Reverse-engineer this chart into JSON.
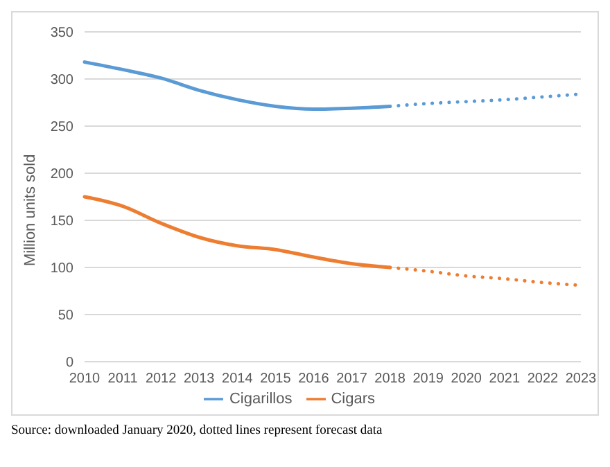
{
  "chart_data": {
    "type": "line",
    "ylabel": "Million units sold",
    "categories": [
      "2010",
      "2011",
      "2012",
      "2013",
      "2014",
      "2015",
      "2016",
      "2017",
      "2018",
      "2019",
      "2020",
      "2021",
      "2022",
      "2023"
    ],
    "series": [
      {
        "name": "Cigarillos",
        "color": "#5b9bd5",
        "line_style": "solid",
        "values": [
          318,
          310,
          301,
          288,
          278,
          271,
          268,
          269,
          271,
          null,
          null,
          null,
          null,
          null
        ]
      },
      {
        "color": "#5b9bd5",
        "line_style": "dotted",
        "values": [
          null,
          null,
          null,
          null,
          null,
          null,
          null,
          null,
          271,
          274,
          276,
          278,
          281,
          284
        ]
      },
      {
        "name": "Cigars",
        "color": "#ed7d31",
        "line_style": "solid",
        "values": [
          175,
          165,
          147,
          132,
          123,
          119,
          111,
          104,
          100,
          null,
          null,
          null,
          null,
          null
        ]
      },
      {
        "color": "#ed7d31",
        "line_style": "dotted",
        "values": [
          null,
          null,
          null,
          null,
          null,
          null,
          null,
          null,
          100,
          96,
          91,
          88,
          84,
          81
        ]
      }
    ],
    "ylim": [
      0,
      350
    ],
    "yticks": [
      0,
      50,
      100,
      150,
      200,
      250,
      300,
      350
    ],
    "grid": "y",
    "legend": "bottom",
    "annotations": [
      "Source: downloaded January 2020, dotted lines represent forecast data"
    ]
  }
}
